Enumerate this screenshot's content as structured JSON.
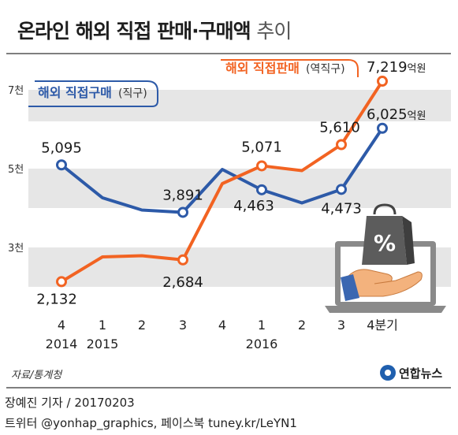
{
  "title": {
    "main": "온라인 해외 직접 판매·구매액",
    "suffix": "추이"
  },
  "source": "자료/통계청",
  "logo_text": "연합뉴스",
  "byline": "장예진 기자 / 20170203",
  "social": "트위터 @yonhap_graphics, 페이스북 tuney.kr/LeYN1",
  "colors": {
    "purchase": "#2d5aa8",
    "sales": "#f26322",
    "band": "#e6e6e6",
    "frame": "#555555"
  },
  "chart_data": {
    "type": "line",
    "categories": [
      "4",
      "1",
      "2",
      "3",
      "4",
      "1",
      "2",
      "3",
      "4분기"
    ],
    "year_labels": [
      {
        "index": 0,
        "label": "2014"
      },
      {
        "index": 1,
        "label": "2015"
      },
      {
        "index": 5,
        "label": "2016"
      }
    ],
    "ytick_labels": [
      {
        "value": 3000,
        "label": "3천"
      },
      {
        "value": 5000,
        "label": "5천"
      },
      {
        "value": 7000,
        "label": "7천"
      }
    ],
    "ylim": [
      1000,
      7600
    ],
    "series": [
      {
        "name": "해외 직접구매",
        "name_note": "(직구)",
        "color": "#2d5aa8",
        "values": [
          5095,
          4260,
          3950,
          3891,
          4980,
          4463,
          4130,
          4473,
          6025
        ],
        "labels": [
          "5,095",
          "",
          "",
          "3,891",
          "",
          "4,463",
          "",
          "4,473",
          "6,025"
        ],
        "label_units": [
          "",
          "",
          "",
          "",
          "",
          "",
          "",
          "",
          "억원"
        ]
      },
      {
        "name": "해외 직접판매",
        "name_note": "(역직구)",
        "color": "#f26322",
        "values": [
          2132,
          2760,
          2790,
          2684,
          4620,
          5071,
          4950,
          5610,
          7219
        ],
        "labels": [
          "2,132",
          "",
          "",
          "2,684",
          "",
          "5,071",
          "",
          "5,610",
          "7,219"
        ],
        "label_units": [
          "",
          "",
          "",
          "",
          "",
          "",
          "",
          "",
          "억원"
        ]
      }
    ]
  }
}
